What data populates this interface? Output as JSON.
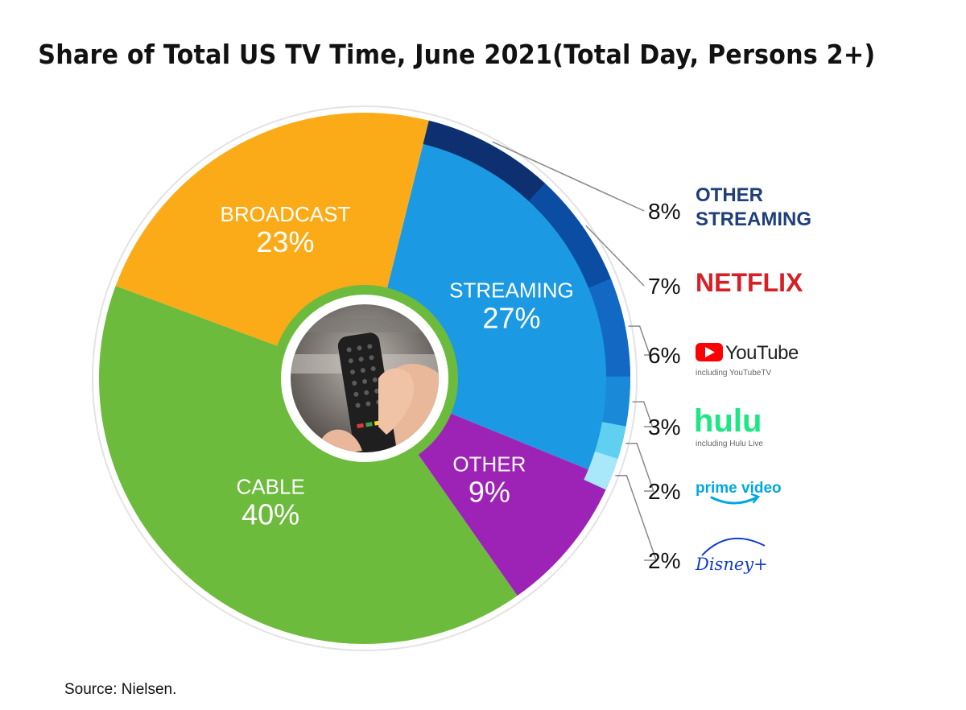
{
  "title": "Share of Total US TV Time, June 2021(Total Day, Persons 2+)",
  "source": "Source: Nielsen.",
  "chart_data": {
    "type": "pie",
    "title": "Share of Total US TV Time, June 2021(Total Day, Persons 2+)",
    "slices": [
      {
        "name": "STREAMING",
        "value": 27,
        "label": "27%",
        "color": "#1b9ae3"
      },
      {
        "name": "OTHER",
        "value": 9,
        "label": "9%",
        "color": "#9d23b6"
      },
      {
        "name": "CABLE",
        "value": 40,
        "label": "40%",
        "color": "#6cbb3c"
      },
      {
        "name": "BROADCAST",
        "value": 23,
        "label": "23%",
        "color": "#fbab18"
      }
    ],
    "streaming_breakdown": [
      {
        "name": "OTHER STREAMING",
        "value": 8,
        "label": "8%",
        "color": "#0e3070"
      },
      {
        "name": "NETFLIX",
        "value": 7,
        "label": "7%",
        "color": "#0a4da3"
      },
      {
        "name": "YouTube",
        "subtitle": "including YouTubeTV",
        "value": 6,
        "label": "6%",
        "color": "#1268c3"
      },
      {
        "name": "hulu",
        "subtitle": "including Hulu Live",
        "value": 3,
        "label": "3%",
        "color": "#1a8ad8"
      },
      {
        "name": "prime video",
        "value": 2,
        "label": "2%",
        "color": "#5fd0f0"
      },
      {
        "name": "Disney+",
        "value": 2,
        "label": "2%",
        "color": "#a8e8fa"
      }
    ],
    "legend_placement": "right",
    "brand_colors": {
      "other_streaming": "#1f3f7a",
      "netflix": "#d81f26",
      "youtube": "#ff0000",
      "hulu": "#1ce783",
      "prime": "#00a8e1",
      "disney": "#113ccf"
    }
  }
}
